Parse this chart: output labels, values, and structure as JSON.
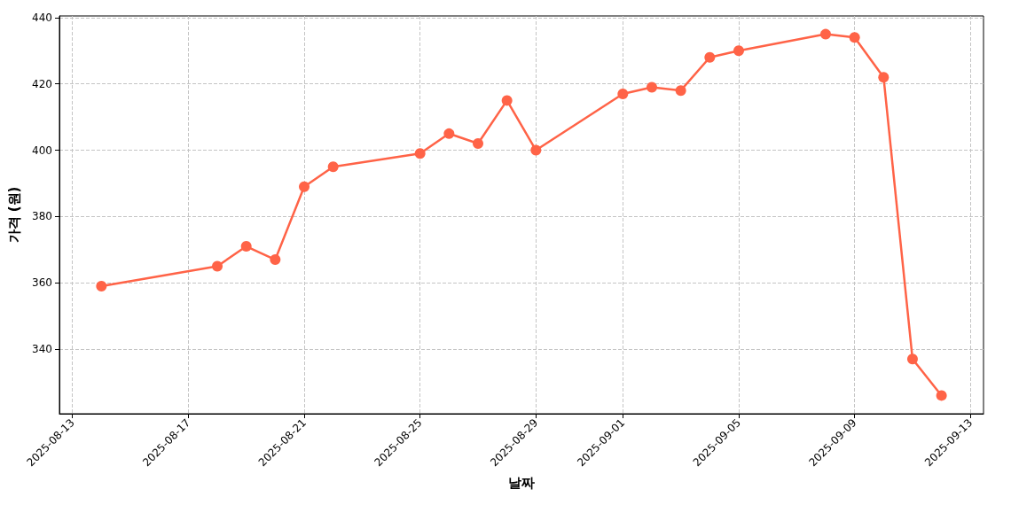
{
  "chart_data": {
    "type": "line",
    "xlabel": "날짜",
    "ylabel": "가격 (원)",
    "x": [
      "2025-08-14",
      "2025-08-18",
      "2025-08-19",
      "2025-08-20",
      "2025-08-21",
      "2025-08-22",
      "2025-08-25",
      "2025-08-26",
      "2025-08-27",
      "2025-08-28",
      "2025-08-29",
      "2025-09-01",
      "2025-09-02",
      "2025-09-03",
      "2025-09-04",
      "2025-09-05",
      "2025-09-08",
      "2025-09-09",
      "2025-09-10",
      "2025-09-11",
      "2025-09-12"
    ],
    "series": [
      {
        "color": "#ff6347",
        "values": [
          359,
          365,
          371,
          367,
          389,
          395,
          399,
          405,
          402,
          415,
          400,
          417,
          419,
          418,
          428,
          430,
          435,
          434,
          422,
          337,
          326
        ]
      }
    ],
    "xlim": [
      "2025-08-12T13:12",
      "2025-09-13T10:48"
    ],
    "xticks": [
      "2025-08-13",
      "2025-08-17",
      "2025-08-21",
      "2025-08-25",
      "2025-08-29",
      "2025-09-01",
      "2025-09-05",
      "2025-09-09",
      "2025-09-13"
    ],
    "ylim": [
      320.5,
      440.5
    ],
    "yticks": [
      340,
      360,
      380,
      400,
      420,
      440
    ],
    "grid": true,
    "marker": "circle",
    "line_style": "solid"
  }
}
